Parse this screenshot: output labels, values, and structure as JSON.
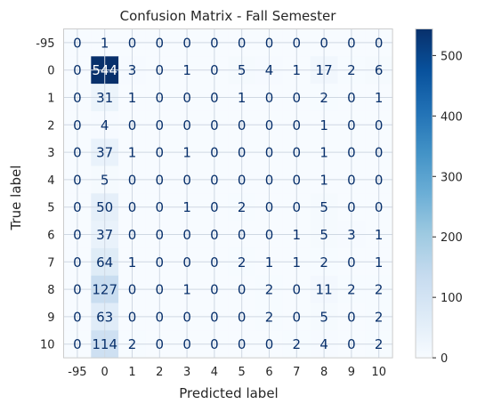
{
  "chart_data": {
    "type": "heatmap",
    "title": "Confusion Matrix - Fall Semester",
    "xlabel": "Predicted label",
    "ylabel": "True label",
    "labels": [
      "-95",
      "0",
      "1",
      "2",
      "3",
      "4",
      "5",
      "6",
      "7",
      "8",
      "9",
      "10"
    ],
    "matrix": [
      [
        0,
        1,
        0,
        0,
        0,
        0,
        0,
        0,
        0,
        0,
        0,
        0
      ],
      [
        0,
        544,
        3,
        0,
        1,
        0,
        5,
        4,
        1,
        17,
        2,
        6
      ],
      [
        0,
        31,
        1,
        0,
        0,
        0,
        1,
        0,
        0,
        2,
        0,
        1
      ],
      [
        0,
        4,
        0,
        0,
        0,
        0,
        0,
        0,
        0,
        1,
        0,
        0
      ],
      [
        0,
        37,
        1,
        0,
        1,
        0,
        0,
        0,
        0,
        1,
        0,
        0
      ],
      [
        0,
        5,
        0,
        0,
        0,
        0,
        0,
        0,
        0,
        1,
        0,
        0
      ],
      [
        0,
        50,
        0,
        0,
        1,
        0,
        2,
        0,
        0,
        5,
        0,
        0
      ],
      [
        0,
        37,
        0,
        0,
        0,
        0,
        0,
        0,
        1,
        5,
        3,
        1
      ],
      [
        0,
        64,
        1,
        0,
        0,
        0,
        2,
        1,
        1,
        2,
        0,
        1
      ],
      [
        0,
        127,
        0,
        0,
        1,
        0,
        0,
        2,
        0,
        11,
        2,
        2
      ],
      [
        0,
        63,
        0,
        0,
        0,
        0,
        0,
        2,
        0,
        5,
        0,
        2
      ],
      [
        0,
        114,
        2,
        0,
        0,
        0,
        0,
        0,
        2,
        4,
        0,
        2
      ]
    ],
    "colormap": "Blues",
    "vmin": 0,
    "vmax": 544,
    "colorbar_ticks": [
      0,
      100,
      200,
      300,
      400,
      500
    ],
    "grid": true,
    "colors": {
      "text_dark": "#08306b",
      "text_light": "#ffffff"
    }
  }
}
